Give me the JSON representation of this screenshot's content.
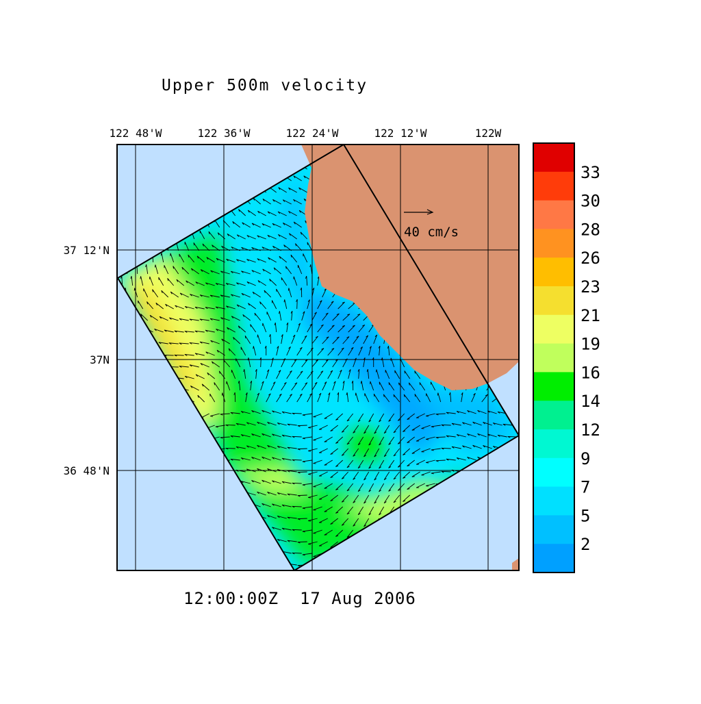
{
  "title": "Upper 500m velocity",
  "timestamp": "12:00:00Z  17 Aug 2006",
  "scale_arrow": {
    "label": "40 cm/s"
  },
  "lon_labels": [
    "122 48'W",
    "122 36'W",
    "122 24'W",
    "122 12'W",
    "122W"
  ],
  "lat_labels": [
    "37 12'N",
    "37N",
    "36 48'N"
  ],
  "colors": {
    "ocean_outside": "#c0e0ff",
    "land": "#da9370",
    "grid": "#000000"
  },
  "colorbar": {
    "unit": "cm/s",
    "labels": [
      "33",
      "30",
      "28",
      "26",
      "23",
      "21",
      "19",
      "16",
      "14",
      "12",
      "9",
      "7",
      "5",
      "2"
    ],
    "band_colors": [
      "#e00000",
      "#ff3c0a",
      "#ff7845",
      "#ff9220",
      "#ffbe00",
      "#f5df2f",
      "#eeff62",
      "#c0ff5c",
      "#00ee00",
      "#00f090",
      "#00f8d2",
      "#00ffff",
      "#00e0ff",
      "#00c0ff",
      "#00a0ff"
    ]
  }
}
